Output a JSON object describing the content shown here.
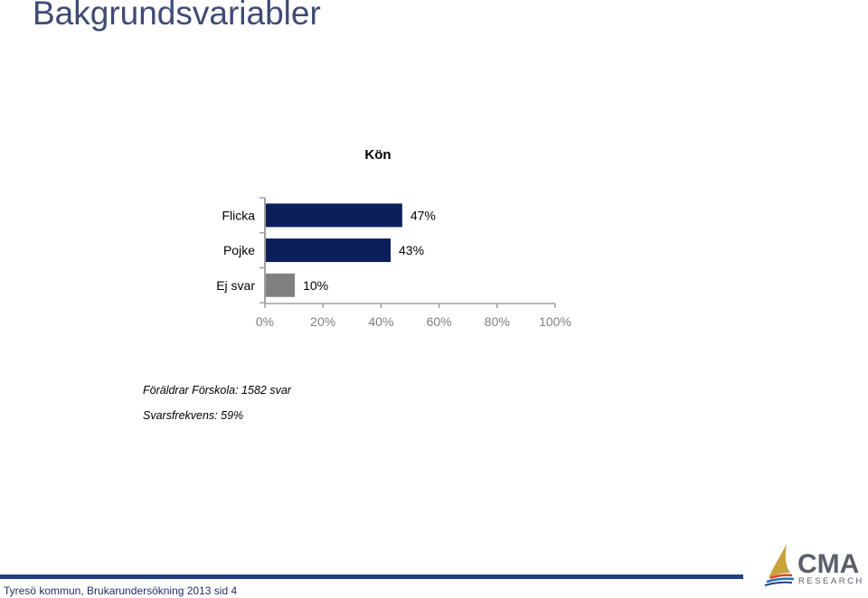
{
  "page": {
    "title": "Bakgrundsvariabler",
    "note_respondents": "Föräldrar Förskola: 1582 svar",
    "note_response_rate": "Svarsfrekvens: 59%",
    "footer": "Tyresö kommun, Brukarundersökning 2013 sid 4",
    "logo_text": "CMA",
    "logo_subtext": "RESEARCH"
  },
  "colors": {
    "primary": "#0b1f5c",
    "secondary": "#808080",
    "title": "#3f4a75",
    "accent": "#1f3f86",
    "logo_gray": "#5a5f6a"
  },
  "chart_data": {
    "type": "bar",
    "orientation": "horizontal",
    "title": "Kön",
    "categories": [
      "Flicka",
      "Pojke",
      "Ej svar"
    ],
    "values": [
      47,
      43,
      10
    ],
    "data_labels": [
      "47%",
      "43%",
      "10%"
    ],
    "bar_colors": [
      "#0b1f5c",
      "#0b1f5c",
      "#808080"
    ],
    "xlim": [
      0,
      100
    ],
    "xticks": [
      0,
      20,
      40,
      60,
      80,
      100
    ],
    "xtick_labels": [
      "0%",
      "20%",
      "40%",
      "60%",
      "80%",
      "100%"
    ],
    "grid": false,
    "legend": "none"
  }
}
